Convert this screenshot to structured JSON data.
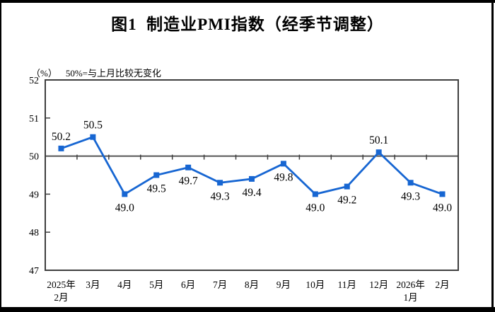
{
  "page": {
    "title": "图1  制造业PMI指数（经季节调整）",
    "unit_label": "（%）",
    "baseline_note": "50%=与上月比较无变化"
  },
  "chart_data": {
    "type": "line",
    "title": "图1 制造业PMI指数（经季节调整）",
    "series_name": "制造业PMI指数",
    "categories": [
      "2025年\n2月",
      "3月",
      "4月",
      "5月",
      "6月",
      "7月",
      "8月",
      "9月",
      "10月",
      "11月",
      "12月",
      "2026年\n1月",
      "2月"
    ],
    "values": [
      50.2,
      50.5,
      49.0,
      49.5,
      49.7,
      49.3,
      49.4,
      49.8,
      49.0,
      49.2,
      50.1,
      49.3,
      49.0
    ],
    "ylabel": "%",
    "xlabel": "",
    "ylim": [
      47,
      52
    ],
    "ytick_step": 1,
    "yticks": [
      47,
      48,
      49,
      50,
      51,
      52
    ],
    "baseline_value": 50,
    "grid": false,
    "legend": "none",
    "value_labels": "every point, 1 decimal; above point when value >= 50, below otherwise",
    "marker": "square",
    "colors": {
      "line": "#1766D2",
      "marker": "#1766D2",
      "axis": "#3F3F3F",
      "text": "#000000",
      "background": "#FFFFFF"
    }
  }
}
